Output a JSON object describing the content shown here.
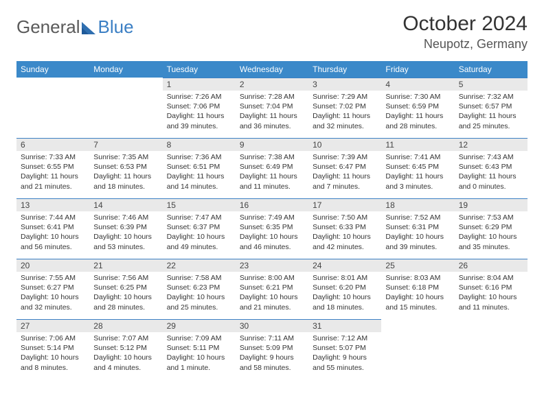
{
  "logo": {
    "text_general": "General",
    "text_blue": "Blue",
    "accent_color": "#3b7fc4"
  },
  "title": "October 2024",
  "location": "Neupotz, Germany",
  "colors": {
    "header_bg": "#3b89c9",
    "header_text": "#ffffff",
    "daynum_bg": "#e9e9e9",
    "daynum_border": "#3b7fc4",
    "page_bg": "#ffffff",
    "text": "#333333"
  },
  "days_of_week": [
    "Sunday",
    "Monday",
    "Tuesday",
    "Wednesday",
    "Thursday",
    "Friday",
    "Saturday"
  ],
  "leading_blanks": 2,
  "days": [
    {
      "n": 1,
      "sunrise": "7:26 AM",
      "sunset": "7:06 PM",
      "daylight": "11 hours and 39 minutes."
    },
    {
      "n": 2,
      "sunrise": "7:28 AM",
      "sunset": "7:04 PM",
      "daylight": "11 hours and 36 minutes."
    },
    {
      "n": 3,
      "sunrise": "7:29 AM",
      "sunset": "7:02 PM",
      "daylight": "11 hours and 32 minutes."
    },
    {
      "n": 4,
      "sunrise": "7:30 AM",
      "sunset": "6:59 PM",
      "daylight": "11 hours and 28 minutes."
    },
    {
      "n": 5,
      "sunrise": "7:32 AM",
      "sunset": "6:57 PM",
      "daylight": "11 hours and 25 minutes."
    },
    {
      "n": 6,
      "sunrise": "7:33 AM",
      "sunset": "6:55 PM",
      "daylight": "11 hours and 21 minutes."
    },
    {
      "n": 7,
      "sunrise": "7:35 AM",
      "sunset": "6:53 PM",
      "daylight": "11 hours and 18 minutes."
    },
    {
      "n": 8,
      "sunrise": "7:36 AM",
      "sunset": "6:51 PM",
      "daylight": "11 hours and 14 minutes."
    },
    {
      "n": 9,
      "sunrise": "7:38 AM",
      "sunset": "6:49 PM",
      "daylight": "11 hours and 11 minutes."
    },
    {
      "n": 10,
      "sunrise": "7:39 AM",
      "sunset": "6:47 PM",
      "daylight": "11 hours and 7 minutes."
    },
    {
      "n": 11,
      "sunrise": "7:41 AM",
      "sunset": "6:45 PM",
      "daylight": "11 hours and 3 minutes."
    },
    {
      "n": 12,
      "sunrise": "7:43 AM",
      "sunset": "6:43 PM",
      "daylight": "11 hours and 0 minutes."
    },
    {
      "n": 13,
      "sunrise": "7:44 AM",
      "sunset": "6:41 PM",
      "daylight": "10 hours and 56 minutes."
    },
    {
      "n": 14,
      "sunrise": "7:46 AM",
      "sunset": "6:39 PM",
      "daylight": "10 hours and 53 minutes."
    },
    {
      "n": 15,
      "sunrise": "7:47 AM",
      "sunset": "6:37 PM",
      "daylight": "10 hours and 49 minutes."
    },
    {
      "n": 16,
      "sunrise": "7:49 AM",
      "sunset": "6:35 PM",
      "daylight": "10 hours and 46 minutes."
    },
    {
      "n": 17,
      "sunrise": "7:50 AM",
      "sunset": "6:33 PM",
      "daylight": "10 hours and 42 minutes."
    },
    {
      "n": 18,
      "sunrise": "7:52 AM",
      "sunset": "6:31 PM",
      "daylight": "10 hours and 39 minutes."
    },
    {
      "n": 19,
      "sunrise": "7:53 AM",
      "sunset": "6:29 PM",
      "daylight": "10 hours and 35 minutes."
    },
    {
      "n": 20,
      "sunrise": "7:55 AM",
      "sunset": "6:27 PM",
      "daylight": "10 hours and 32 minutes."
    },
    {
      "n": 21,
      "sunrise": "7:56 AM",
      "sunset": "6:25 PM",
      "daylight": "10 hours and 28 minutes."
    },
    {
      "n": 22,
      "sunrise": "7:58 AM",
      "sunset": "6:23 PM",
      "daylight": "10 hours and 25 minutes."
    },
    {
      "n": 23,
      "sunrise": "8:00 AM",
      "sunset": "6:21 PM",
      "daylight": "10 hours and 21 minutes."
    },
    {
      "n": 24,
      "sunrise": "8:01 AM",
      "sunset": "6:20 PM",
      "daylight": "10 hours and 18 minutes."
    },
    {
      "n": 25,
      "sunrise": "8:03 AM",
      "sunset": "6:18 PM",
      "daylight": "10 hours and 15 minutes."
    },
    {
      "n": 26,
      "sunrise": "8:04 AM",
      "sunset": "6:16 PM",
      "daylight": "10 hours and 11 minutes."
    },
    {
      "n": 27,
      "sunrise": "7:06 AM",
      "sunset": "5:14 PM",
      "daylight": "10 hours and 8 minutes."
    },
    {
      "n": 28,
      "sunrise": "7:07 AM",
      "sunset": "5:12 PM",
      "daylight": "10 hours and 4 minutes."
    },
    {
      "n": 29,
      "sunrise": "7:09 AM",
      "sunset": "5:11 PM",
      "daylight": "10 hours and 1 minute."
    },
    {
      "n": 30,
      "sunrise": "7:11 AM",
      "sunset": "5:09 PM",
      "daylight": "9 hours and 58 minutes."
    },
    {
      "n": 31,
      "sunrise": "7:12 AM",
      "sunset": "5:07 PM",
      "daylight": "9 hours and 55 minutes."
    }
  ],
  "labels": {
    "sunrise": "Sunrise: ",
    "sunset": "Sunset: ",
    "daylight": "Daylight: "
  }
}
